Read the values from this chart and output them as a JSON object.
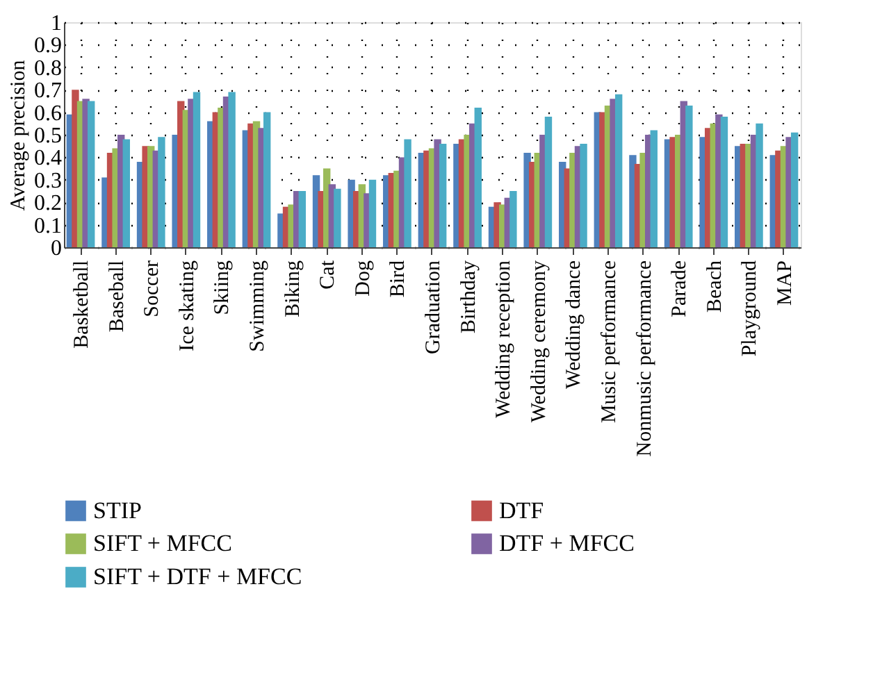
{
  "chart_data": {
    "type": "bar",
    "ylabel": "Average precision",
    "categories": [
      "Basketball",
      "Baseball",
      "Soccer",
      "Ice skating",
      "Skiing",
      "Swimming",
      "Biking",
      "Cat",
      "Dog",
      "Bird",
      "Graduation",
      "Birthday",
      "Wedding reception",
      "Wedding ceremony",
      "Wedding dance",
      "Music performance",
      "Nonmusic performance",
      "Parade",
      "Beach",
      "Playground",
      "MAP"
    ],
    "series": [
      {
        "name": "STIP",
        "color": "#4f81bd",
        "values": [
          0.59,
          0.31,
          0.38,
          0.5,
          0.56,
          0.52,
          0.15,
          0.32,
          0.3,
          0.32,
          0.42,
          0.46,
          0.18,
          0.42,
          0.38,
          0.6,
          0.41,
          0.48,
          0.49,
          0.45,
          0.41
        ]
      },
      {
        "name": "DTF",
        "color": "#c0504d",
        "values": [
          0.7,
          0.42,
          0.45,
          0.65,
          0.6,
          0.55,
          0.18,
          0.25,
          0.25,
          0.33,
          0.43,
          0.48,
          0.2,
          0.38,
          0.35,
          0.6,
          0.37,
          0.49,
          0.53,
          0.46,
          0.43
        ]
      },
      {
        "name": "SIFT + MFCC",
        "color": "#9bbb59",
        "values": [
          0.65,
          0.44,
          0.45,
          0.61,
          0.62,
          0.56,
          0.19,
          0.35,
          0.28,
          0.34,
          0.44,
          0.5,
          0.19,
          0.42,
          0.42,
          0.63,
          0.42,
          0.5,
          0.55,
          0.46,
          0.45
        ]
      },
      {
        "name": "DTF + MFCC",
        "color": "#8064a2",
        "values": [
          0.66,
          0.5,
          0.43,
          0.66,
          0.67,
          0.53,
          0.25,
          0.28,
          0.24,
          0.4,
          0.48,
          0.55,
          0.22,
          0.5,
          0.45,
          0.66,
          0.5,
          0.65,
          0.59,
          0.5,
          0.49
        ]
      },
      {
        "name": "SIFT + DTF + MFCC",
        "color": "#4bacc6",
        "values": [
          0.65,
          0.48,
          0.49,
          0.69,
          0.69,
          0.6,
          0.25,
          0.26,
          0.3,
          0.48,
          0.46,
          0.62,
          0.25,
          0.58,
          0.46,
          0.68,
          0.52,
          0.63,
          0.58,
          0.55,
          0.51
        ]
      }
    ],
    "ylim": [
      0,
      1
    ],
    "yticks": [
      0,
      0.1,
      0.2,
      0.3,
      0.4,
      0.5,
      0.6,
      0.7,
      0.8,
      0.9,
      1
    ],
    "grid": true,
    "legend": "bottom"
  }
}
